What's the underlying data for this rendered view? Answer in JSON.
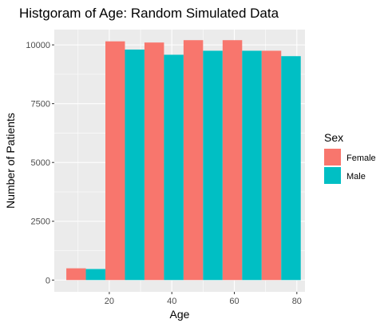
{
  "chart_data": {
    "type": "bar",
    "title": "Histgoram of Age: Random Simulated Data",
    "xlabel": "Age",
    "ylabel": "Number of Patients",
    "xlim": [
      2.4,
      82.6
    ],
    "ylim": [
      -500,
      10650
    ],
    "x_ticks": [
      20,
      40,
      60,
      80
    ],
    "y_ticks": [
      0,
      2500,
      5000,
      7500,
      10000
    ],
    "x_tick_labels": [
      "20",
      "40",
      "60",
      "80"
    ],
    "y_tick_labels": [
      "0",
      "2500",
      "5000",
      "7500",
      "10000"
    ],
    "bin_width": 12.5,
    "bin_centers": [
      12.5,
      25,
      37.5,
      50,
      62.5,
      75
    ],
    "grid": true,
    "legend": {
      "title": "Sex",
      "placement": "right"
    },
    "series": [
      {
        "name": "Female",
        "color": "#F8766D",
        "values": [
          500,
          10150,
          10100,
          10200,
          10200,
          9750
        ]
      },
      {
        "name": "Male",
        "color": "#00BFC4",
        "values": [
          470,
          9800,
          9580,
          9750,
          9750,
          9520
        ]
      }
    ]
  }
}
